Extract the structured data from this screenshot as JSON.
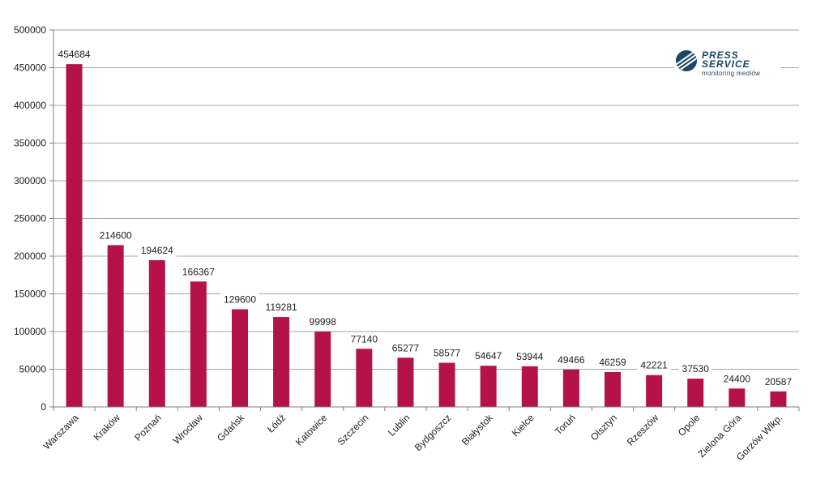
{
  "logo": {
    "line1": "PRESS",
    "line2": "SERVICE",
    "sub": "monitoring mediów"
  },
  "colors": {
    "bar": "#b5124a",
    "grid": "#a6a6a6",
    "axis": "#808080",
    "text": "#222222"
  },
  "chart_data": {
    "type": "bar",
    "title": "",
    "xlabel": "",
    "ylabel": "",
    "ylim": [
      0,
      500000
    ],
    "yticks": [
      0,
      50000,
      100000,
      150000,
      200000,
      250000,
      300000,
      350000,
      400000,
      450000,
      500000
    ],
    "grid": true,
    "categories": [
      "Warszawa",
      "Kraków",
      "Poznań",
      "Wrocław",
      "Gdańsk",
      "Łódź",
      "Katowice",
      "Szczecin",
      "Lublin",
      "Bydgoszcz",
      "Białystok",
      "Kielce",
      "Toruń",
      "Olsztyn",
      "Rzeszów",
      "Opole",
      "Zielona Góra",
      "Gorzów Wlkp."
    ],
    "values": [
      454684,
      214600,
      194624,
      166367,
      129600,
      119281,
      99998,
      77140,
      65277,
      58577,
      54647,
      53944,
      49466,
      46259,
      42221,
      37530,
      24400,
      20587
    ]
  }
}
